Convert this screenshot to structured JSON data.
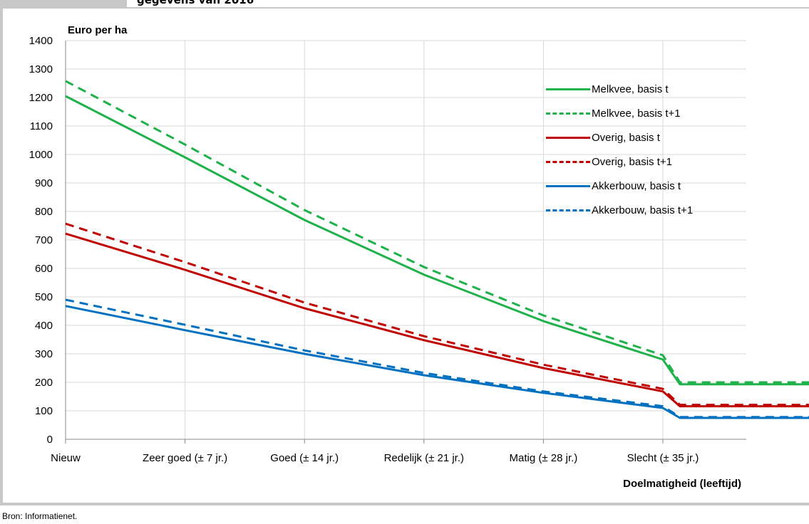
{
  "header_fragment": "gegevens van 2016",
  "source_note": "Bron: Informatienet.",
  "colors": {
    "green": "#1fb14a",
    "red": "#c00000",
    "blue": "#0070c0",
    "gridline": "#d9d9d9",
    "frame": "#c8c8c8"
  },
  "chart_data": {
    "type": "line",
    "ylabel": "Euro per ha",
    "xlabel": "Doelmatigheid (leeftijd)",
    "ylim": [
      0,
      1400
    ],
    "ytick_step": 100,
    "yticks": [
      "0",
      "100",
      "200",
      "300",
      "400",
      "500",
      "600",
      "700",
      "800",
      "900",
      "1000",
      "1100",
      "1200",
      "1300",
      "1400"
    ],
    "categories": [
      "Nieuw",
      "Zeer goed (± 7 jr.)",
      "Goed (± 14 jr.)",
      "Redelijk (± 21 jr.)",
      "Matig (± 28 jr.)",
      "Slecht (± 35 jr.)"
    ],
    "x_unit": "jaren",
    "x_max": 47,
    "grid": true,
    "legend_position": "top-right",
    "series": [
      {
        "name": "Melkvee, basis t",
        "color": "#1fb14a",
        "dash": false,
        "points": [
          [
            0,
            1205
          ],
          [
            7,
            990
          ],
          [
            14,
            770
          ],
          [
            21,
            578
          ],
          [
            28,
            415
          ],
          [
            35,
            280
          ],
          [
            36,
            193
          ],
          [
            47,
            193
          ]
        ]
      },
      {
        "name": "Melkvee, basis t+1",
        "color": "#1fb14a",
        "dash": true,
        "points": [
          [
            0,
            1258
          ],
          [
            7,
            1035
          ],
          [
            14,
            805
          ],
          [
            21,
            605
          ],
          [
            28,
            435
          ],
          [
            35,
            295
          ],
          [
            36,
            200
          ],
          [
            47,
            200
          ]
        ]
      },
      {
        "name": "Overig, basis t",
        "color": "#c00000",
        "dash": false,
        "points": [
          [
            0,
            722
          ],
          [
            7,
            595
          ],
          [
            14,
            460
          ],
          [
            21,
            348
          ],
          [
            28,
            250
          ],
          [
            35,
            168
          ],
          [
            36,
            116
          ],
          [
            47,
            116
          ]
        ]
      },
      {
        "name": "Overig, basis t+1",
        "color": "#c00000",
        "dash": true,
        "points": [
          [
            0,
            757
          ],
          [
            7,
            622
          ],
          [
            14,
            480
          ],
          [
            21,
            362
          ],
          [
            28,
            262
          ],
          [
            35,
            177
          ],
          [
            36,
            121
          ],
          [
            47,
            121
          ]
        ]
      },
      {
        "name": "Akkerbouw, basis t",
        "color": "#0070c0",
        "dash": false,
        "points": [
          [
            0,
            468
          ],
          [
            7,
            383
          ],
          [
            14,
            300
          ],
          [
            21,
            225
          ],
          [
            28,
            163
          ],
          [
            35,
            110
          ],
          [
            36,
            75
          ],
          [
            47,
            75
          ]
        ]
      },
      {
        "name": "Akkerbouw, basis t+1",
        "color": "#0070c0",
        "dash": true,
        "points": [
          [
            0,
            490
          ],
          [
            7,
            402
          ],
          [
            14,
            312
          ],
          [
            21,
            233
          ],
          [
            28,
            168
          ],
          [
            35,
            116
          ],
          [
            36,
            78
          ],
          [
            47,
            78
          ]
        ]
      }
    ]
  }
}
